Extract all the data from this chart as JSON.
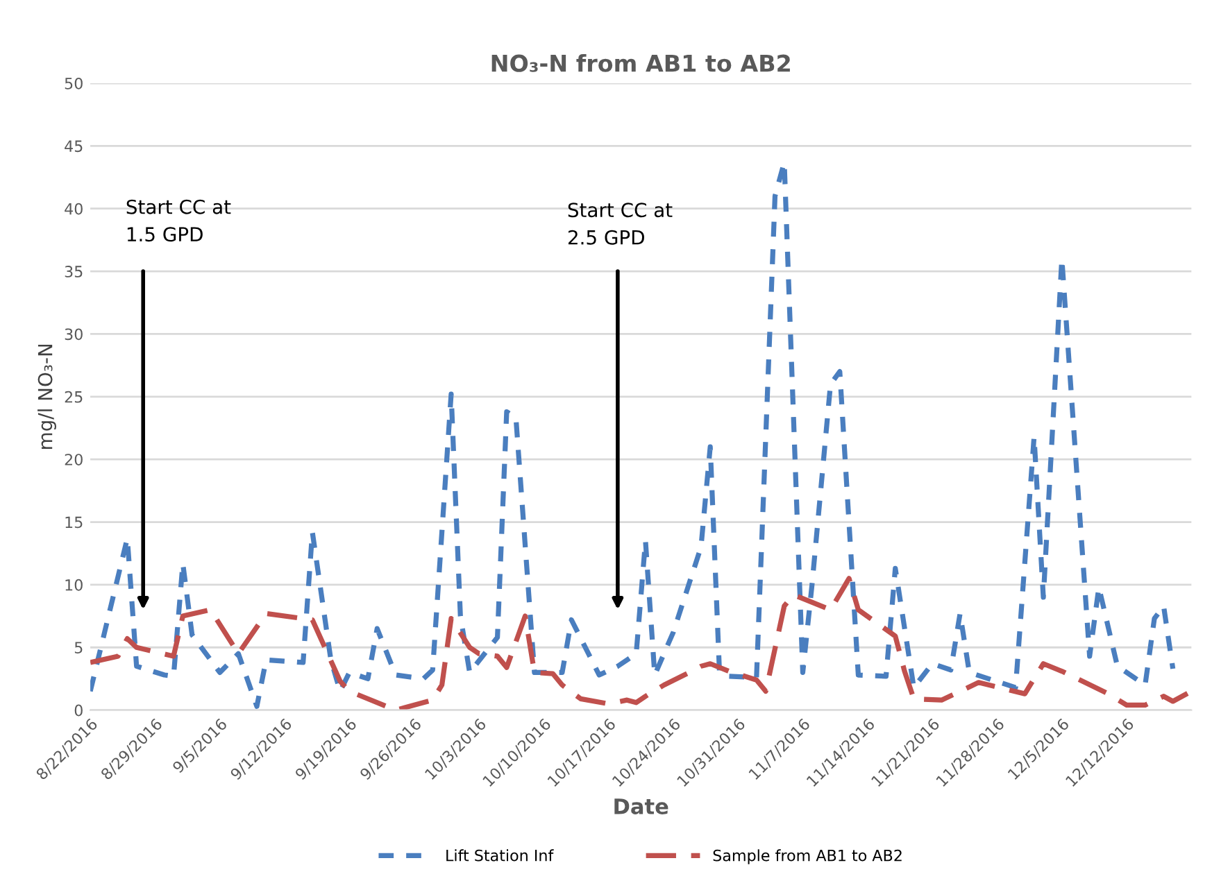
{
  "chart_data": {
    "type": "line",
    "title": "NO₃-N from AB1 to AB2",
    "xlabel": "Date",
    "ylabel": "mg/l NO₃-N",
    "xlim": [
      "2016-08-22",
      "2016-12-19"
    ],
    "ylim": [
      0,
      50
    ],
    "yticks": [
      0,
      5,
      10,
      15,
      20,
      25,
      30,
      35,
      40,
      45,
      50
    ],
    "xticks": [
      {
        "value": "2016-08-22",
        "label": "8/22/2016"
      },
      {
        "value": "2016-08-29",
        "label": "8/29/2016"
      },
      {
        "value": "2016-09-05",
        "label": "9/5/2016"
      },
      {
        "value": "2016-09-12",
        "label": "9/12/2016"
      },
      {
        "value": "2016-09-19",
        "label": "9/19/2016"
      },
      {
        "value": "2016-09-26",
        "label": "9/26/2016"
      },
      {
        "value": "2016-10-03",
        "label": "10/3/2016"
      },
      {
        "value": "2016-10-10",
        "label": "10/10/2016"
      },
      {
        "value": "2016-10-17",
        "label": "10/17/2016"
      },
      {
        "value": "2016-10-24",
        "label": "10/24/2016"
      },
      {
        "value": "2016-10-31",
        "label": "10/31/2016"
      },
      {
        "value": "2016-11-07",
        "label": "11/7/2016"
      },
      {
        "value": "2016-11-14",
        "label": "11/14/2016"
      },
      {
        "value": "2016-11-21",
        "label": "11/21/2016"
      },
      {
        "value": "2016-11-28",
        "label": "11/28/2016"
      },
      {
        "value": "2016-12-05",
        "label": "12/5/2016"
      },
      {
        "value": "2016-12-12",
        "label": "12/12/2016"
      }
    ],
    "grid": "y",
    "legend": "bottom",
    "marker": "none",
    "annotations": [
      "Start CC at\n1.5 GPD",
      "Start CC at\n2.5 GPD"
    ],
    "series": [
      {
        "name": "Lift Station Inf",
        "color": "#4a7ebf",
        "line_style": "dashed",
        "x": [
          "2016-08-22",
          "2016-08-26",
          "2016-08-27",
          "2016-08-30",
          "2016-08-31",
          "2016-09-01",
          "2016-09-02",
          "2016-09-05",
          "2016-09-07",
          "2016-09-09",
          "2016-09-10",
          "2016-09-14",
          "2016-09-15",
          "2016-09-17",
          "2016-09-18",
          "2016-09-19",
          "2016-09-21",
          "2016-09-22",
          "2016-09-24",
          "2016-09-27",
          "2016-09-28",
          "2016-09-30",
          "2016-10-01",
          "2016-10-02",
          "2016-10-05",
          "2016-10-06",
          "2016-10-07",
          "2016-10-09",
          "2016-10-11",
          "2016-10-12",
          "2016-10-13",
          "2016-10-16",
          "2016-10-18",
          "2016-10-20",
          "2016-10-21",
          "2016-10-22",
          "2016-10-24",
          "2016-10-27",
          "2016-10-28",
          "2016-10-29",
          "2016-10-30",
          "2016-11-02",
          "2016-11-04",
          "2016-11-05",
          "2016-11-07",
          "2016-11-08",
          "2016-11-10",
          "2016-11-11",
          "2016-11-13",
          "2016-11-16",
          "2016-11-17",
          "2016-11-19",
          "2016-11-21",
          "2016-11-23",
          "2016-11-24",
          "2016-11-25",
          "2016-11-30",
          "2016-12-02",
          "2016-12-03",
          "2016-12-05",
          "2016-12-08",
          "2016-12-09",
          "2016-12-11",
          "2016-12-14",
          "2016-12-15",
          "2016-12-16",
          "2016-12-17"
        ],
        "values": [
          1.5,
          13.7,
          3.5,
          2.8,
          2.7,
          11.7,
          6.0,
          3.0,
          4.5,
          0.3,
          4.0,
          3.8,
          14.2,
          4.0,
          1.5,
          3.0,
          2.5,
          6.5,
          2.8,
          2.5,
          3.2,
          25.2,
          7.5,
          3.0,
          5.8,
          23.8,
          23.3,
          3.0,
          3.0,
          3.0,
          7.2,
          2.8,
          3.5,
          4.5,
          13.5,
          2.8,
          6.2,
          13.0,
          21.0,
          3.0,
          2.7,
          2.6,
          41.0,
          43.7,
          3.0,
          10.0,
          26.0,
          27.0,
          2.8,
          2.7,
          11.3,
          1.8,
          3.7,
          3.2,
          7.7,
          3.0,
          1.8,
          21.8,
          9.0,
          36.0,
          4.3,
          9.8,
          3.5,
          2.0,
          7.3,
          8.3,
          3.3
        ]
      },
      {
        "name": "Sample from AB1 to AB2",
        "color": "#c0504d",
        "line_style": "dashed",
        "x": [
          "2016-08-22",
          "2016-08-25",
          "2016-08-26",
          "2016-08-27",
          "2016-08-31",
          "2016-09-01",
          "2016-09-04",
          "2016-09-07",
          "2016-09-10",
          "2016-09-15",
          "2016-09-18",
          "2016-09-19",
          "2016-09-24",
          "2016-09-28",
          "2016-09-29",
          "2016-09-30",
          "2016-10-02",
          "2016-10-03",
          "2016-10-05",
          "2016-10-06",
          "2016-10-08",
          "2016-10-09",
          "2016-10-11",
          "2016-10-12",
          "2016-10-14",
          "2016-10-17",
          "2016-10-19",
          "2016-10-20",
          "2016-10-21",
          "2016-10-23",
          "2016-10-26",
          "2016-10-27",
          "2016-10-28",
          "2016-10-30",
          "2016-11-02",
          "2016-11-03",
          "2016-11-05",
          "2016-11-06",
          "2016-11-10",
          "2016-11-12",
          "2016-11-13",
          "2016-11-17",
          "2016-11-18",
          "2016-11-19",
          "2016-11-22",
          "2016-11-26",
          "2016-12-01",
          "2016-12-03",
          "2016-12-05",
          "2016-12-10",
          "2016-12-12",
          "2016-12-14",
          "2016-12-16",
          "2016-12-17",
          "2016-12-19"
        ],
        "values": [
          3.8,
          4.3,
          5.7,
          5.0,
          4.3,
          7.5,
          8.0,
          4.5,
          7.7,
          7.2,
          2.3,
          1.5,
          0.0,
          0.8,
          2.0,
          7.3,
          5.0,
          4.5,
          4.3,
          3.4,
          7.5,
          3.0,
          2.9,
          2.0,
          0.9,
          0.5,
          0.8,
          0.6,
          1.1,
          2.0,
          3.1,
          3.5,
          3.7,
          3.1,
          2.4,
          1.5,
          8.3,
          9.2,
          8.0,
          10.5,
          8.0,
          5.9,
          3.1,
          0.9,
          0.8,
          2.2,
          1.3,
          3.7,
          3.1,
          1.3,
          0.4,
          0.4,
          1.1,
          0.7,
          1.5
        ]
      }
    ]
  }
}
